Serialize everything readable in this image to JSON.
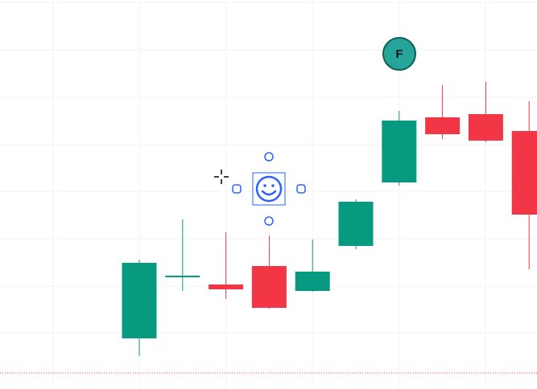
{
  "chart_data": {
    "type": "candlestick",
    "open": [
      63,
      139,
      130,
      153,
      122,
      178,
      257,
      338,
      342,
      321
    ],
    "high": [
      161,
      211,
      195,
      191,
      186,
      236,
      346,
      378,
      382,
      358
    ],
    "low": [
      41,
      122,
      112,
      100,
      121,
      174,
      253,
      311,
      307,
      149
    ],
    "close": [
      157,
      141,
      124,
      101,
      146,
      233,
      334,
      317,
      309,
      217
    ],
    "up_color": "#089981",
    "down_color": "#f23645",
    "ylim": [
      0,
      484
    ],
    "annotation": "F"
  }
}
